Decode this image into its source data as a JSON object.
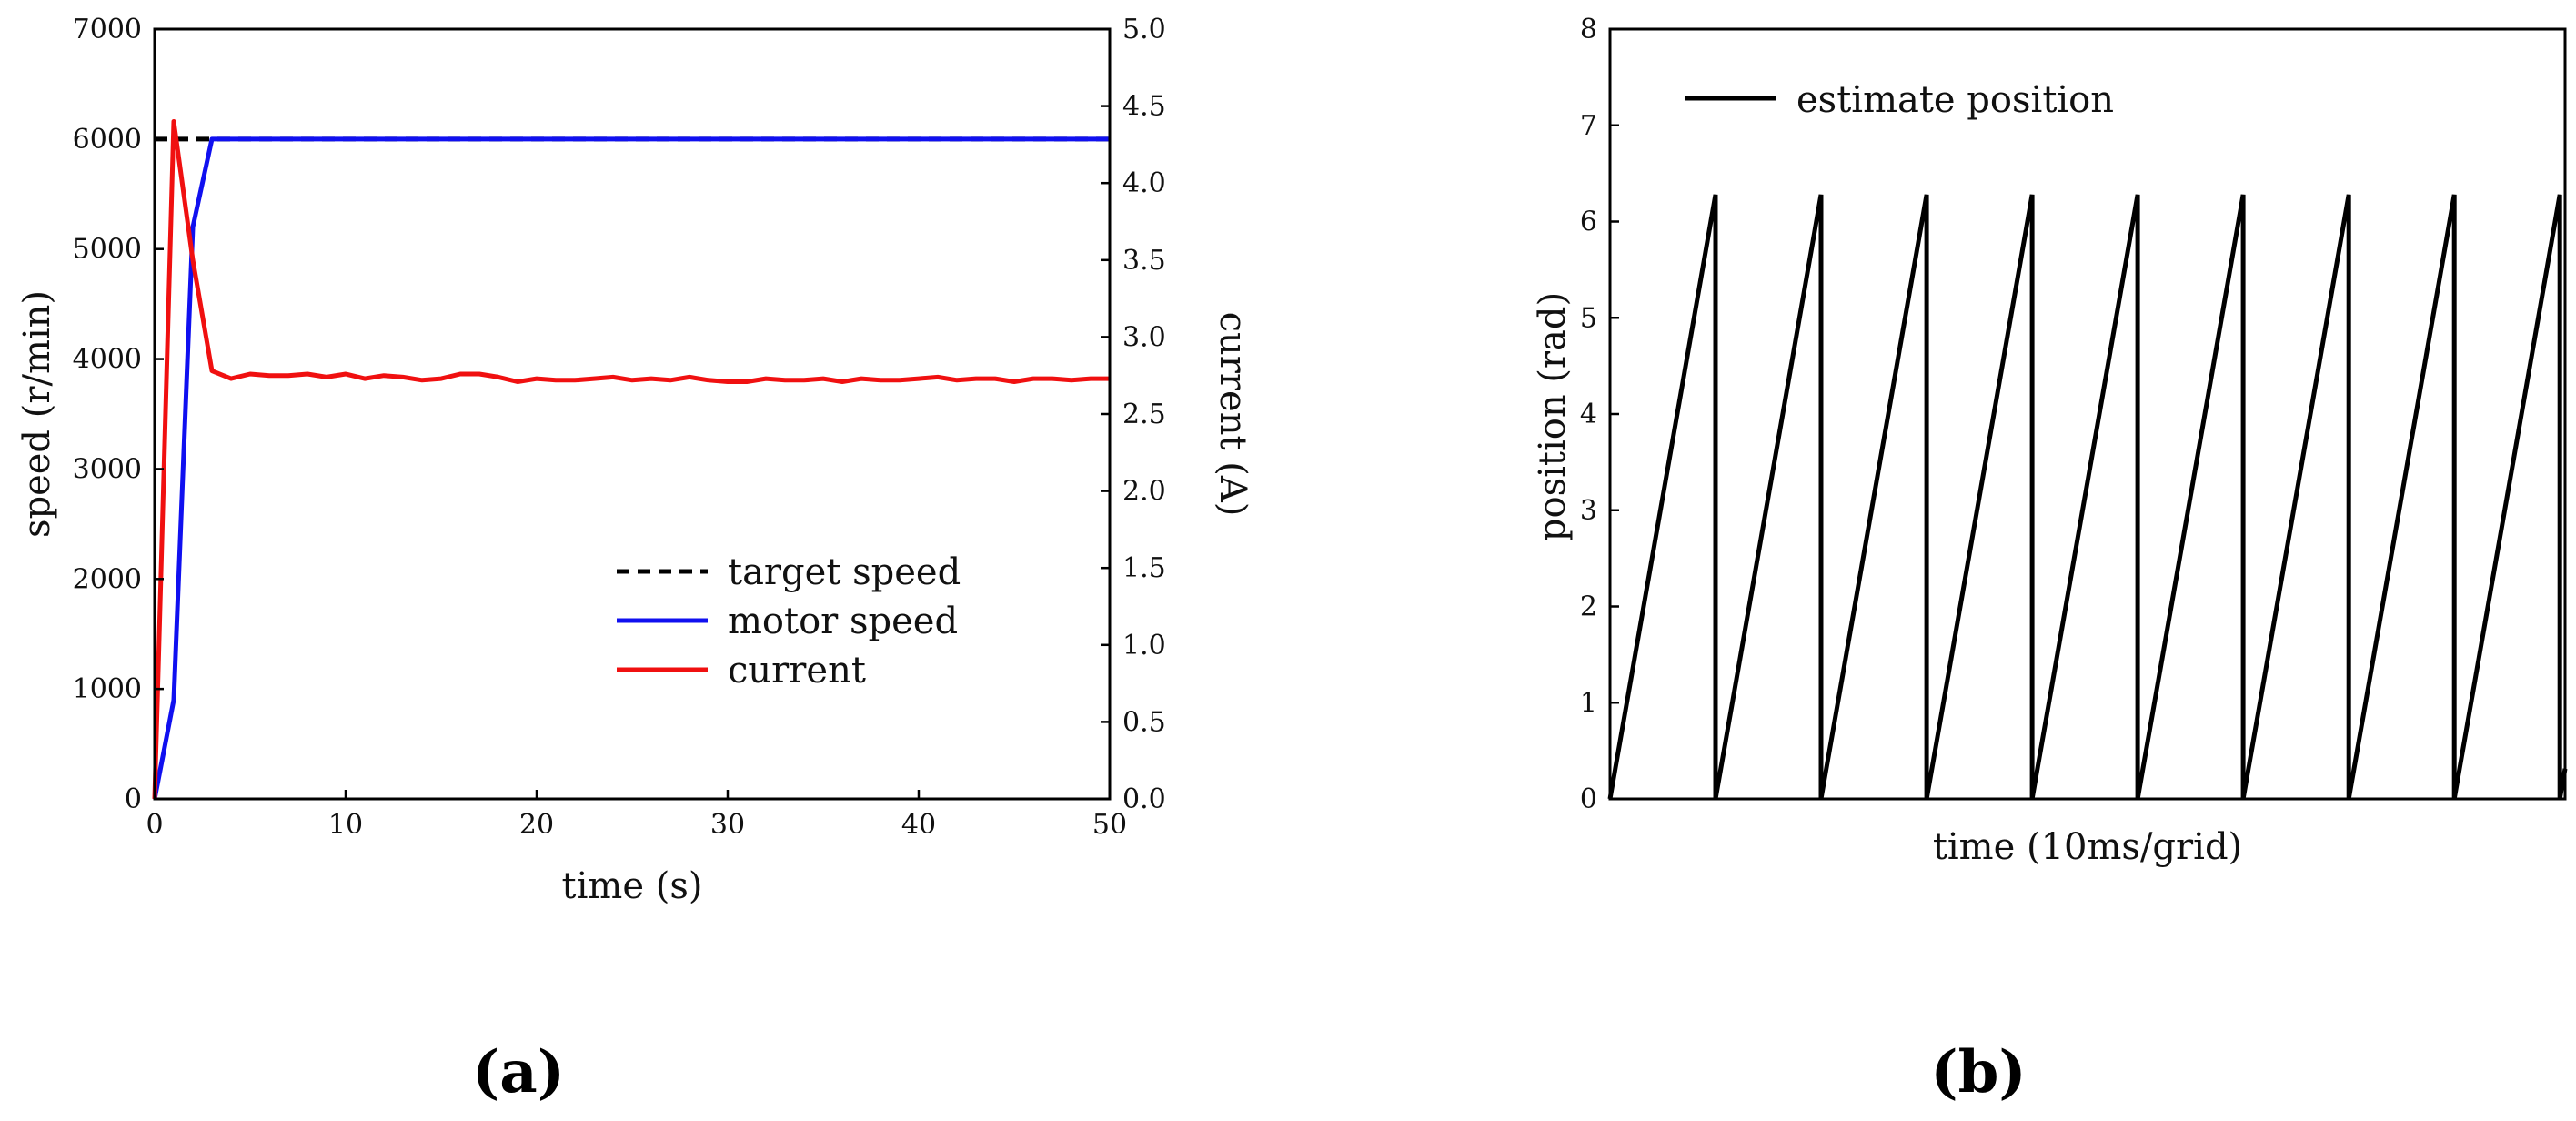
{
  "chart_data": [
    {
      "type": "line",
      "panel_label": "(a)",
      "xlabel": "time (s)",
      "ylabel": "speed (r/min)",
      "y2label": "current (A)",
      "xlim": [
        0,
        50
      ],
      "ylim": [
        0,
        7000
      ],
      "y2lim": [
        0,
        5.0
      ],
      "xticks": [
        "0",
        "10",
        "20",
        "30",
        "40",
        "50"
      ],
      "yticks": [
        "0",
        "1000",
        "2000",
        "3000",
        "4000",
        "5000",
        "6000",
        "7000"
      ],
      "y2ticks": [
        "0.0",
        "0.5",
        "1.0",
        "1.5",
        "2.0",
        "2.5",
        "3.0",
        "3.5",
        "4.0",
        "4.5",
        "5.0"
      ],
      "grid": false,
      "legend_position": "lower-right",
      "series": [
        {
          "name": "target speed",
          "color": "#000000",
          "style": "dashed",
          "axis": "left",
          "x": [
            0,
            50
          ],
          "y": [
            6000,
            6000
          ]
        },
        {
          "name": "motor speed",
          "color": "#1010f0",
          "style": "solid",
          "axis": "left",
          "x": [
            0,
            1,
            2,
            3,
            5,
            10,
            15,
            20,
            25,
            30,
            35,
            40,
            45,
            50
          ],
          "y": [
            0,
            900,
            5200,
            6000,
            6000,
            6000,
            6000,
            6000,
            6000,
            6000,
            6000,
            6000,
            6000,
            6000
          ]
        },
        {
          "name": "current",
          "color": "#f01010",
          "style": "solid",
          "axis": "right",
          "x": [
            0,
            1,
            2,
            3,
            4,
            5,
            6,
            7,
            8,
            9,
            10,
            11,
            12,
            13,
            14,
            15,
            16,
            17,
            18,
            19,
            20,
            21,
            22,
            23,
            24,
            25,
            26,
            27,
            28,
            29,
            30,
            31,
            32,
            33,
            34,
            35,
            36,
            37,
            38,
            39,
            40,
            41,
            42,
            43,
            44,
            45,
            46,
            47,
            48,
            49,
            50
          ],
          "y": [
            0.0,
            4.4,
            3.5,
            2.78,
            2.73,
            2.76,
            2.75,
            2.75,
            2.76,
            2.74,
            2.76,
            2.73,
            2.75,
            2.74,
            2.72,
            2.73,
            2.76,
            2.76,
            2.74,
            2.71,
            2.73,
            2.72,
            2.72,
            2.73,
            2.74,
            2.72,
            2.73,
            2.72,
            2.74,
            2.72,
            2.71,
            2.71,
            2.73,
            2.72,
            2.72,
            2.73,
            2.71,
            2.73,
            2.72,
            2.72,
            2.73,
            2.74,
            2.72,
            2.73,
            2.73,
            2.71,
            2.73,
            2.73,
            2.72,
            2.73,
            2.73
          ]
        }
      ]
    },
    {
      "type": "line",
      "panel_label": "(b)",
      "xlabel": "time (10ms/grid)",
      "ylabel": "position (rad)",
      "ylim": [
        0,
        8
      ],
      "yticks": [
        "0",
        "1",
        "2",
        "3",
        "4",
        "5",
        "6",
        "7",
        "8"
      ],
      "xlim": [
        0,
        9.05
      ],
      "xticks": [],
      "grid": false,
      "legend_position": "top-left",
      "series": [
        {
          "name": "estimate position",
          "color": "#000000",
          "style": "solid",
          "shape": "sawtooth",
          "period": 1,
          "amplitude": 6.28,
          "cycles": 9.05
        }
      ]
    }
  ]
}
